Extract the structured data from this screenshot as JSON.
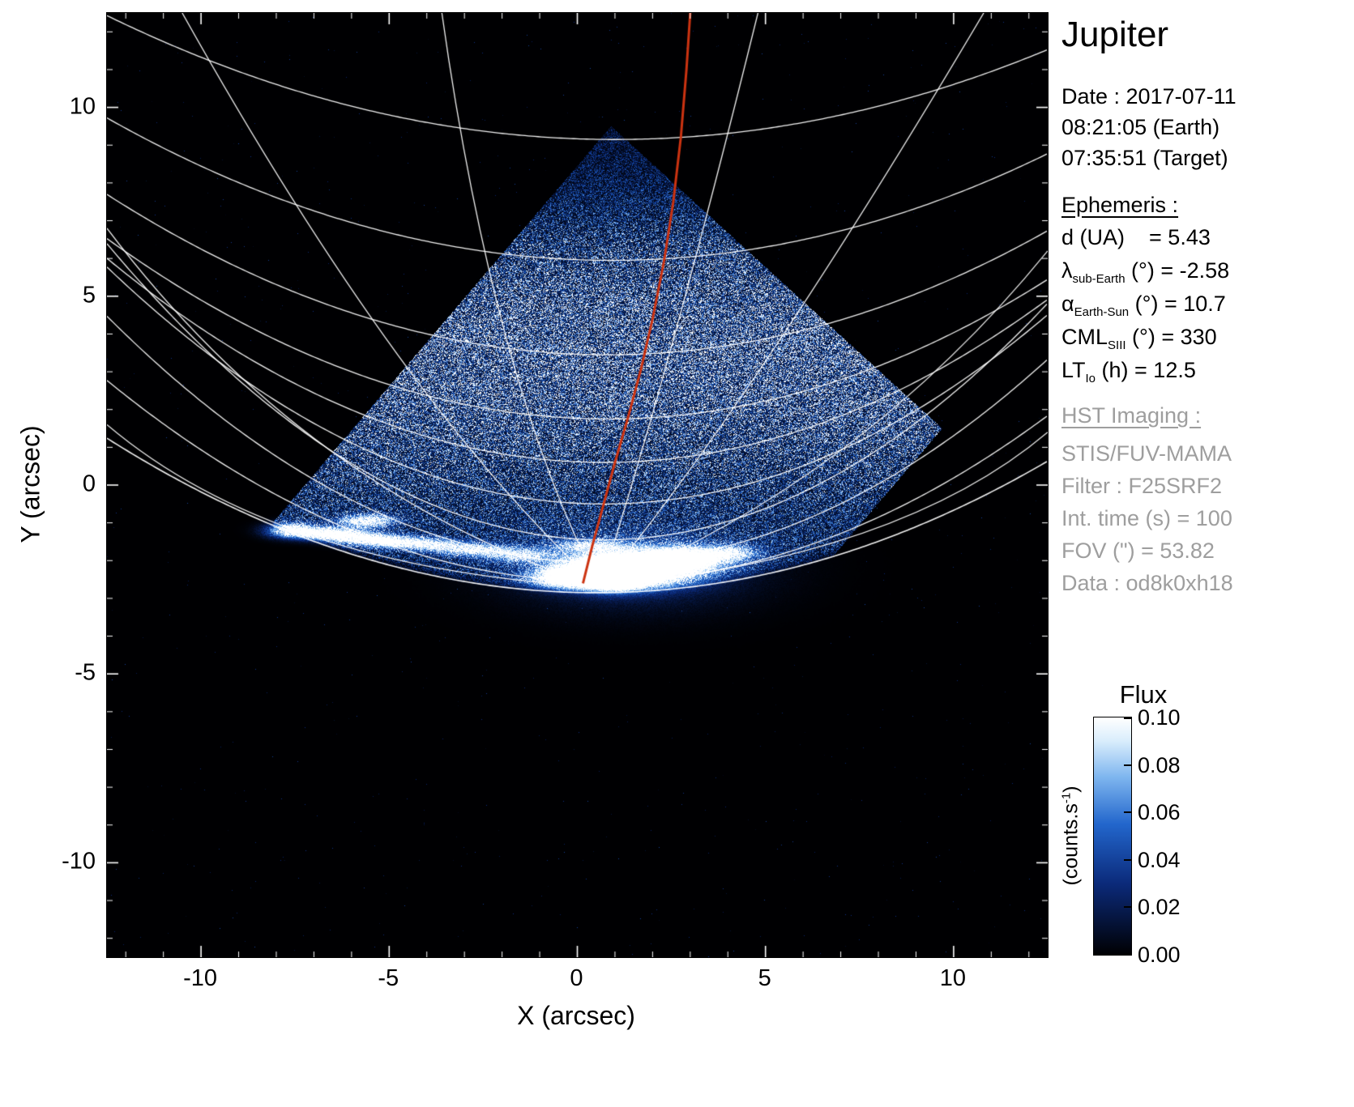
{
  "title": "Jupiter",
  "info": {
    "date_lines": [
      "Date : 2017-07-11",
      "08:21:05 (Earth)",
      "07:35:51 (Target)"
    ],
    "ephemeris_heading": "Ephemeris :",
    "ephemeris": [
      {
        "pre": "d",
        "sub": "",
        "post": " (UA)    = 5.43"
      },
      {
        "pre": "λ",
        "sub": "sub-Earth",
        "post": " (°) = -2.58"
      },
      {
        "pre": "α",
        "sub": "Earth-Sun",
        "post": " (°) = 10.7"
      },
      {
        "pre": "CML",
        "sub": "SIII",
        "post": " (°) = 330"
      },
      {
        "pre": "LT",
        "sub": "Io",
        "post": " (h) = 12.5"
      }
    ],
    "hst_heading": "HST Imaging :",
    "hst_lines": [
      "STIS/FUV-MAMA",
      "Filter : F25SRF2",
      "Int. time (s) = 100",
      "FOV (\") = 53.82",
      "Data : od8k0xh18"
    ]
  },
  "chart_data": {
    "type": "heatmap",
    "title": "Jupiter",
    "xlabel": "X (arcsec)",
    "ylabel": "Y (arcsec)",
    "xlim": [
      -12.5,
      12.5
    ],
    "ylim": [
      -12.5,
      12.5
    ],
    "x_ticks": [
      -10,
      -5,
      0,
      5,
      10
    ],
    "x_tick_labels": [
      "-10",
      "-5",
      "0",
      "5",
      "10"
    ],
    "y_ticks": [
      10,
      5,
      0,
      -5,
      -10
    ],
    "y_tick_labels": [
      "10",
      "5",
      "0",
      "-5",
      "-10"
    ],
    "grid_on": true,
    "grid_color": "#ffffff",
    "background_color": "#000000",
    "colormap": {
      "pos": [
        0,
        0.3,
        0.55,
        0.75,
        0.9,
        1
      ],
      "colors": [
        "#000002",
        "#0b2a7a",
        "#2266cc",
        "#7fb6ef",
        "#d9edfc",
        "#ffffff"
      ]
    },
    "colorbar": {
      "title": "Flux",
      "unit_pre": "(counts.s",
      "unit_sup": "-1",
      "unit_post": ")",
      "tick_labels": [
        "0.10",
        "0.08",
        "0.06",
        "0.04",
        "0.02",
        "0.00"
      ],
      "range": [
        0.0,
        0.1
      ],
      "position": "right"
    },
    "detector_diamond": {
      "top": [
        0.9,
        9.5
      ],
      "right": [
        9.7,
        1.5
      ],
      "bottom": [
        0.7,
        -9.0
      ],
      "left": [
        -8.1,
        -1.0
      ]
    },
    "limb": {
      "x0": 0.5,
      "min": -2.85,
      "k": 0.0242
    },
    "lat_arcs": [
      {
        "x0": 0.6,
        "min": -2.55,
        "k": 0.031
      },
      {
        "x0": 0.6,
        "min": -2.05,
        "k": 0.038
      },
      {
        "x0": 0.7,
        "min": -1.45,
        "k": 0.045
      },
      {
        "x0": 0.7,
        "min": -0.5,
        "k": 0.036
      },
      {
        "x0": 0.7,
        "min": 0.6,
        "k": 0.031
      },
      {
        "x0": 0.8,
        "min": 1.75,
        "k": 0.027
      },
      {
        "x0": 0.8,
        "min": 3.45,
        "k": 0.024
      },
      {
        "x0": 0.9,
        "min": 5.95,
        "k": 0.021
      },
      {
        "x0": 1.0,
        "min": 9.15,
        "k": 0.018
      }
    ],
    "meridians": [
      {
        "from": [
          0.6,
          -2.7
        ],
        "ctrl": [
          -8.0,
          -2.2
        ],
        "to": [
          -12.5,
          1.6
        ]
      },
      {
        "from": [
          0.6,
          -2.7
        ],
        "ctrl": [
          -7.2,
          -0.2
        ],
        "to": [
          -12.5,
          6.8
        ]
      },
      {
        "from": [
          0.6,
          -2.7
        ],
        "ctrl": [
          -4.6,
          2.0
        ],
        "to": [
          -10.5,
          12.5
        ]
      },
      {
        "from": [
          0.6,
          -2.7
        ],
        "ctrl": [
          -2.2,
          2.6
        ],
        "to": [
          -3.6,
          12.5
        ]
      },
      {
        "from": [
          0.6,
          -2.7
        ],
        "ctrl": [
          8.6,
          -1.9
        ],
        "to": [
          12.5,
          1.4
        ]
      },
      {
        "from": [
          0.6,
          -2.7
        ],
        "ctrl": [
          7.6,
          0.2
        ],
        "to": [
          12.5,
          6.2
        ]
      },
      {
        "from": [
          0.6,
          -2.7
        ],
        "ctrl": [
          4.8,
          2.4
        ],
        "to": [
          10.8,
          12.5
        ]
      },
      {
        "from": [
          0.6,
          -2.7
        ],
        "ctrl": [
          2.4,
          2.8
        ],
        "to": [
          4.8,
          12.5
        ]
      }
    ],
    "aurora_blobs": [
      [
        1.5,
        -2.2,
        3.0,
        1.0,
        0.3
      ],
      [
        1.4,
        -2.2,
        1.5,
        0.42,
        2.2
      ],
      [
        0.9,
        -2.4,
        0.8,
        0.3,
        2.6
      ],
      [
        2.9,
        -1.95,
        0.9,
        0.28,
        1.3
      ],
      [
        4.1,
        -1.8,
        0.7,
        0.2,
        0.8
      ],
      [
        -0.4,
        -2.45,
        0.8,
        0.25,
        1.2
      ],
      [
        -1.6,
        -1.85,
        0.9,
        0.18,
        0.8
      ],
      [
        -2.9,
        -1.7,
        0.9,
        0.16,
        0.9
      ],
      [
        -4.2,
        -1.55,
        0.9,
        0.16,
        1.0
      ],
      [
        -5.4,
        -1.45,
        0.8,
        0.16,
        1.2
      ],
      [
        -6.5,
        -1.3,
        0.8,
        0.16,
        1.4
      ],
      [
        -7.6,
        -1.2,
        0.6,
        0.18,
        1.3
      ],
      [
        -5.6,
        -0.95,
        0.7,
        0.16,
        1.1
      ],
      [
        0.3,
        -1.6,
        0.9,
        0.14,
        0.6
      ]
    ],
    "dayglow": {
      "base": 0.3,
      "band_amp": 0.42,
      "band_y": 3.8,
      "band_sigma": 2.9,
      "low_amp": 0.1,
      "low_y": 0.5,
      "low_sigma": 2.5,
      "top_fade_start": 6.5,
      "top_fade_rate": 0.14,
      "bg_speckle_prob": 0.0007
    },
    "meridian_red": {
      "color": "#cc3311",
      "points": [
        [
          0.15,
          -2.6
        ],
        [
          0.4,
          -1.6
        ],
        [
          0.7,
          -0.5
        ],
        [
          1.0,
          0.6
        ],
        [
          1.35,
          1.8
        ],
        [
          1.7,
          3.1
        ],
        [
          2.0,
          4.4
        ],
        [
          2.3,
          5.9
        ],
        [
          2.55,
          7.5
        ],
        [
          2.75,
          9.2
        ],
        [
          2.9,
          11.0
        ],
        [
          3.0,
          12.5
        ]
      ]
    }
  }
}
